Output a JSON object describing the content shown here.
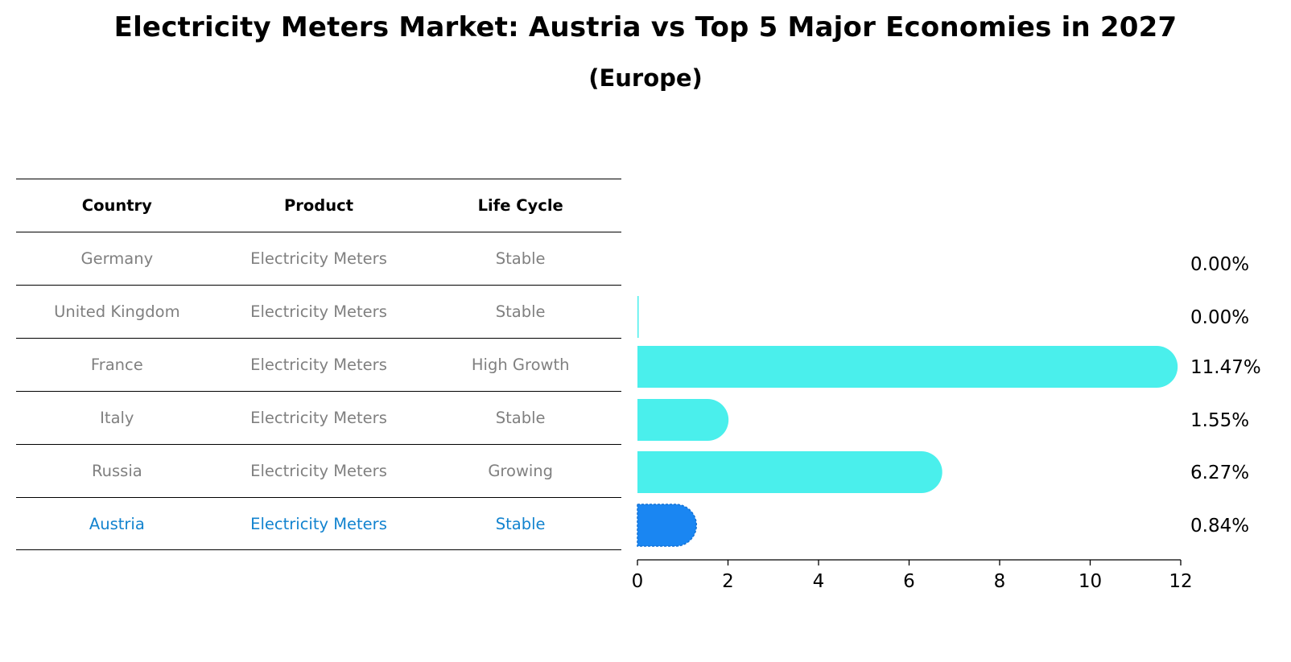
{
  "title": "Electricity Meters Market: Austria vs Top 5 Major Economies in 2027",
  "subtitle": "(Europe)",
  "table": {
    "headers": [
      "Country",
      "Product",
      "Life Cycle"
    ],
    "rows": [
      {
        "country": "Germany",
        "product": "Electricity Meters",
        "life_cycle": "Stable"
      },
      {
        "country": "United Kingdom",
        "product": "Electricity Meters",
        "life_cycle": "Stable"
      },
      {
        "country": "France",
        "product": "Electricity Meters",
        "life_cycle": "High Growth"
      },
      {
        "country": "Italy",
        "product": "Electricity Meters",
        "life_cycle": "Stable"
      },
      {
        "country": "Russia",
        "product": "Electricity Meters",
        "life_cycle": "Growing"
      },
      {
        "country": "Austria",
        "product": "Electricity Meters",
        "life_cycle": "Stable"
      }
    ]
  },
  "colors": {
    "bar": "#4aefec",
    "highlight_bar": "#1a86f2",
    "highlight_text": "#1283cf",
    "muted_text": "#808080"
  },
  "chart_data": {
    "type": "bar",
    "orientation": "horizontal",
    "categories": [
      "Germany",
      "United Kingdom",
      "France",
      "Italy",
      "Russia",
      "Austria"
    ],
    "values": [
      0.0,
      0.0,
      11.47,
      1.55,
      6.27,
      0.84
    ],
    "value_labels": [
      "0.00%",
      "0.00%",
      "11.47%",
      "1.55%",
      "6.27%",
      "0.84%"
    ],
    "highlight": "Austria",
    "xlim": [
      0,
      12
    ],
    "xticks": [
      0,
      2,
      4,
      6,
      8,
      10,
      12
    ],
    "xlabel": "",
    "ylabel": ""
  }
}
